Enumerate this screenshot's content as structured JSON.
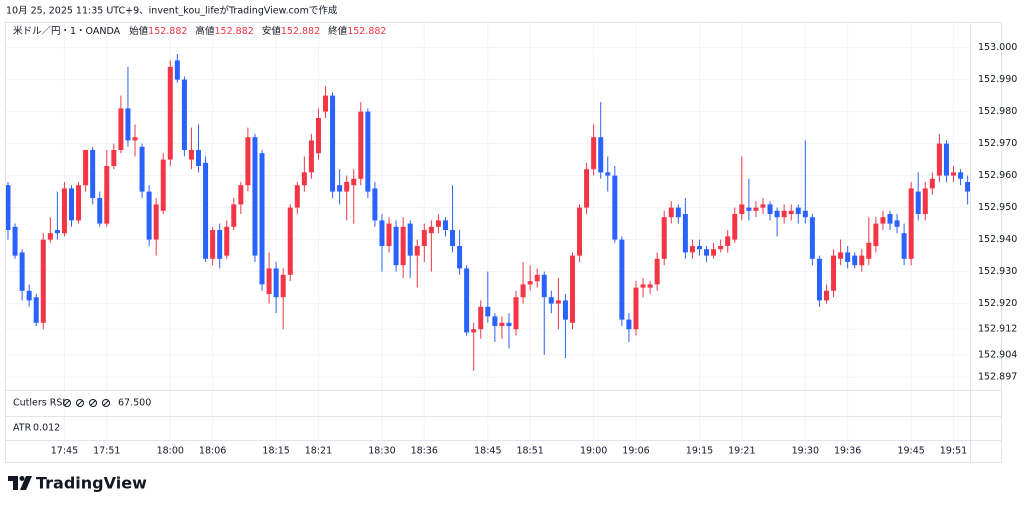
{
  "header": "10月 25, 2025 11:35 UTC+9、invent_kou_lifeがTradingView.comで作成",
  "brand": "TradingView",
  "chart_data": {
    "type": "candlestick",
    "legend": {
      "symbol": "米ドル／円・1・OANDA",
      "ohlc": [
        {
          "label": "始値",
          "value": "152.882"
        },
        {
          "label": "高値",
          "value": "152.882"
        },
        {
          "label": "安値",
          "value": "152.882"
        },
        {
          "label": "終値",
          "value": "152.882"
        }
      ]
    },
    "indicators": [
      {
        "name": "Cutlers RSI",
        "value": "67.500",
        "color": "#2962ff"
      },
      {
        "name": "ATR",
        "value": "0.012",
        "color": "#f23645"
      }
    ],
    "up_color": "#f23645",
    "down_color": "#2962ff",
    "grid": true,
    "ylim": [
      152.893,
      153.008
    ],
    "yticks": [
      {
        "value": 153.0,
        "label": "153.000"
      },
      {
        "value": 152.99,
        "label": "152.990"
      },
      {
        "value": 152.98,
        "label": "152.980"
      },
      {
        "value": 152.97,
        "label": "152.970"
      },
      {
        "value": 152.96,
        "label": "152.960"
      },
      {
        "value": 152.95,
        "label": "152.950"
      },
      {
        "value": 152.94,
        "label": "152.940"
      },
      {
        "value": 152.93,
        "label": "152.930"
      },
      {
        "value": 152.92,
        "label": "152.920"
      },
      {
        "value": 152.912,
        "label": "152.912"
      },
      {
        "value": 152.904,
        "label": "152.904"
      },
      {
        "value": 152.897,
        "label": "152.897"
      }
    ],
    "categories": [
      null,
      null,
      null,
      null,
      null,
      null,
      null,
      null,
      "17:45",
      null,
      null,
      null,
      null,
      null,
      "17:51",
      null,
      null,
      null,
      null,
      null,
      null,
      null,
      null,
      "18:00",
      null,
      null,
      null,
      null,
      null,
      "18:06",
      null,
      null,
      null,
      null,
      null,
      null,
      null,
      null,
      "18:15",
      null,
      null,
      null,
      null,
      null,
      "18:21",
      null,
      null,
      null,
      null,
      null,
      null,
      null,
      null,
      "18:30",
      null,
      null,
      null,
      null,
      null,
      "18:36",
      null,
      null,
      null,
      null,
      null,
      null,
      null,
      null,
      "18:45",
      null,
      null,
      null,
      null,
      null,
      "18:51",
      null,
      null,
      null,
      null,
      null,
      null,
      null,
      null,
      "19:00",
      null,
      null,
      null,
      null,
      null,
      "19:06",
      null,
      null,
      null,
      null,
      null,
      null,
      null,
      null,
      "19:15",
      null,
      null,
      null,
      null,
      null,
      "19:21",
      null,
      null,
      null,
      null,
      null,
      null,
      null,
      null,
      "19:30",
      null,
      null,
      null,
      null,
      null,
      "19:36",
      null,
      null,
      null,
      null,
      null,
      null,
      null,
      null,
      "19:45",
      null,
      null,
      null,
      null,
      null,
      "19:51",
      null,
      null
    ],
    "open": [
      152.957,
      152.944,
      152.936,
      152.924,
      152.922,
      152.914,
      152.94,
      152.943,
      152.942,
      152.956,
      152.946,
      152.957,
      152.968,
      152.953,
      152.945,
      152.963,
      152.968,
      152.981,
      152.971,
      152.969,
      152.955,
      152.94,
      152.949,
      152.965,
      152.996,
      152.99,
      152.965,
      152.968,
      152.964,
      152.934,
      152.943,
      152.935,
      152.944,
      152.951,
      152.957,
      152.972,
      152.967,
      152.923,
      152.931,
      152.922,
      152.929,
      152.95,
      152.957,
      152.961,
      152.967,
      152.98,
      152.985,
      152.957,
      152.955,
      152.957,
      152.959,
      152.98,
      152.956,
      152.946,
      152.938,
      152.944,
      152.932,
      152.945,
      152.935,
      152.938,
      152.942,
      152.944,
      152.946,
      152.943,
      152.938,
      152.931,
      152.911,
      152.912,
      152.919,
      152.916,
      152.913,
      152.914,
      152.912,
      152.922,
      152.926,
      152.927,
      152.929,
      152.922,
      152.92,
      152.921,
      152.914,
      152.935,
      152.95,
      152.962,
      152.972,
      152.961,
      152.96,
      152.94,
      152.915,
      152.912,
      152.925,
      152.925,
      152.926,
      152.934,
      152.947,
      152.95,
      152.948,
      152.936,
      152.938,
      152.937,
      152.935,
      152.937,
      152.938,
      152.94,
      152.948,
      152.95,
      152.949,
      152.95,
      152.951,
      152.949,
      152.947,
      152.948,
      152.95,
      152.949,
      152.947,
      152.934,
      152.921,
      152.924,
      152.934,
      152.936,
      152.935,
      152.932,
      152.934,
      152.938,
      152.945,
      152.948,
      152.946,
      152.942,
      152.934,
      152.955,
      152.948,
      152.956,
      152.96,
      152.97,
      152.96,
      152.961,
      152.958
    ],
    "high": [
      152.958,
      152.945,
      152.937,
      152.926,
      152.923,
      152.942,
      152.947,
      152.955,
      152.958,
      152.957,
      152.958,
      152.968,
      152.969,
      152.955,
      152.968,
      152.97,
      152.985,
      152.994,
      152.976,
      152.97,
      152.957,
      152.953,
      152.967,
      152.996,
      152.998,
      152.991,
      152.975,
      152.976,
      152.966,
      152.944,
      152.945,
      152.946,
      152.953,
      152.958,
      152.975,
      152.973,
      152.968,
      152.936,
      152.933,
      152.931,
      152.951,
      152.958,
      152.966,
      152.973,
      152.981,
      152.988,
      152.986,
      152.962,
      152.96,
      152.962,
      152.983,
      152.981,
      152.958,
      152.948,
      152.947,
      152.946,
      152.947,
      152.946,
      152.94,
      152.945,
      152.946,
      152.948,
      152.947,
      152.957,
      152.943,
      152.932,
      152.914,
      152.921,
      152.93,
      152.917,
      152.916,
      152.917,
      152.924,
      152.933,
      152.932,
      152.931,
      152.93,
      152.924,
      152.928,
      152.923,
      152.936,
      152.951,
      152.964,
      152.976,
      152.983,
      152.966,
      152.963,
      152.941,
      152.917,
      152.927,
      152.928,
      152.927,
      152.936,
      152.949,
      152.952,
      152.951,
      152.953,
      152.94,
      152.94,
      152.938,
      152.939,
      152.94,
      152.943,
      152.95,
      152.966,
      152.959,
      152.952,
      152.953,
      152.952,
      152.95,
      152.951,
      152.951,
      152.951,
      152.971,
      152.948,
      152.935,
      152.926,
      152.937,
      152.94,
      152.938,
      152.936,
      152.937,
      152.947,
      152.947,
      152.949,
      152.949,
      152.948,
      152.945,
      152.958,
      152.961,
      152.958,
      152.961,
      152.973,
      152.971,
      152.963,
      152.962,
      152.96
    ],
    "low": [
      152.94,
      152.934,
      152.921,
      152.919,
      152.913,
      152.912,
      152.939,
      152.94,
      152.941,
      152.944,
      152.945,
      152.955,
      152.951,
      152.944,
      152.944,
      152.962,
      152.967,
      152.969,
      152.966,
      152.953,
      152.938,
      152.935,
      152.948,
      152.963,
      152.989,
      152.966,
      152.962,
      152.961,
      152.933,
      152.932,
      152.931,
      152.934,
      152.943,
      152.948,
      152.955,
      152.933,
      152.924,
      152.92,
      152.917,
      152.912,
      152.927,
      152.948,
      152.955,
      152.959,
      152.965,
      152.978,
      152.953,
      152.951,
      152.946,
      152.945,
      152.957,
      152.953,
      152.944,
      152.93,
      152.936,
      152.93,
      152.928,
      152.928,
      152.925,
      152.933,
      152.93,
      152.942,
      152.941,
      152.936,
      152.929,
      152.91,
      152.899,
      152.909,
      152.914,
      152.908,
      152.909,
      152.906,
      152.91,
      152.92,
      152.924,
      152.925,
      152.904,
      152.917,
      152.912,
      152.903,
      152.912,
      152.933,
      152.948,
      152.96,
      152.959,
      152.955,
      152.939,
      152.913,
      152.908,
      152.91,
      152.922,
      152.923,
      152.924,
      152.932,
      152.945,
      152.945,
      152.934,
      152.934,
      152.935,
      152.933,
      152.934,
      152.936,
      152.936,
      152.939,
      152.946,
      152.946,
      152.947,
      152.948,
      152.946,
      152.941,
      152.945,
      152.946,
      152.945,
      152.945,
      152.932,
      152.919,
      152.92,
      152.922,
      152.932,
      152.931,
      152.931,
      152.93,
      152.932,
      152.936,
      152.943,
      152.943,
      152.942,
      152.932,
      152.932,
      152.946,
      152.946,
      152.954,
      152.958,
      152.958,
      152.958,
      152.957,
      152.951
    ],
    "close": [
      152.943,
      152.935,
      152.924,
      152.921,
      152.914,
      152.94,
      152.942,
      152.942,
      152.956,
      152.946,
      152.957,
      152.968,
      152.953,
      152.945,
      152.963,
      152.968,
      152.981,
      152.971,
      152.972,
      152.955,
      152.94,
      152.951,
      152.965,
      152.994,
      152.99,
      152.968,
      152.968,
      152.963,
      152.934,
      152.943,
      152.934,
      152.944,
      152.951,
      152.957,
      152.972,
      152.935,
      152.926,
      152.931,
      152.922,
      152.929,
      152.95,
      152.957,
      152.961,
      152.971,
      152.978,
      152.985,
      152.955,
      152.955,
      152.958,
      152.959,
      152.98,
      152.955,
      152.946,
      152.938,
      152.945,
      152.932,
      152.944,
      152.935,
      152.938,
      152.943,
      152.944,
      152.946,
      152.943,
      152.938,
      152.931,
      152.911,
      152.912,
      152.919,
      152.916,
      152.913,
      152.914,
      152.913,
      152.922,
      152.926,
      152.927,
      152.929,
      152.922,
      152.92,
      152.921,
      152.915,
      152.935,
      152.95,
      152.962,
      152.972,
      152.961,
      152.96,
      152.94,
      152.915,
      152.912,
      152.925,
      152.926,
      152.926,
      152.934,
      152.947,
      152.95,
      152.947,
      152.936,
      152.938,
      152.937,
      152.935,
      152.937,
      152.938,
      152.941,
      152.948,
      152.951,
      152.949,
      152.95,
      152.951,
      152.948,
      152.947,
      152.949,
      152.949,
      152.948,
      152.947,
      152.934,
      152.921,
      152.924,
      152.935,
      152.936,
      152.933,
      152.932,
      152.935,
      152.939,
      152.945,
      152.947,
      152.945,
      152.944,
      152.934,
      152.956,
      152.948,
      152.956,
      152.959,
      152.97,
      152.96,
      152.961,
      152.959,
      152.955
    ]
  }
}
